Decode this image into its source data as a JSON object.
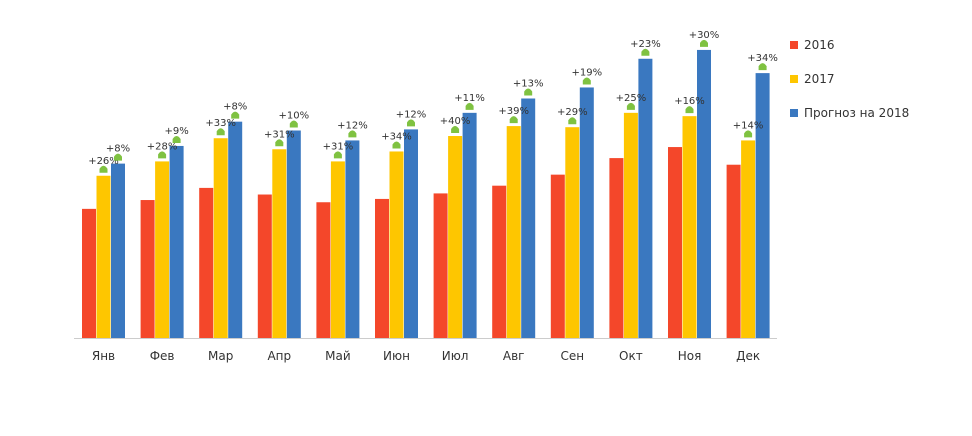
{
  "chart_data": {
    "type": "bar",
    "categories": [
      "Янв",
      "Фев",
      "Мар",
      "Апр",
      "Май",
      "Июн",
      "Июл",
      "Авг",
      "Сен",
      "Окт",
      "Ноя",
      "Дек"
    ],
    "series": [
      {
        "name": "2016",
        "color": "#f4472a",
        "values": [
          117,
          125,
          136,
          130,
          123,
          126,
          131,
          138,
          148,
          163,
          173,
          157
        ]
      },
      {
        "name": "2017",
        "color": "#fec600",
        "values": [
          147,
          160,
          181,
          171,
          160,
          169,
          183,
          192,
          191,
          204,
          201,
          179
        ]
      },
      {
        "name": "Прогноз на 2018",
        "color": "#3a78c0",
        "values": [
          158,
          174,
          196,
          188,
          179,
          189,
          204,
          217,
          227,
          253,
          261,
          240
        ]
      }
    ],
    "growth_2017": [
      "+26%",
      "+28%",
      "+33%",
      "+31%",
      "+31%",
      "+34%",
      "+40%",
      "+39%",
      "+29%",
      "+25%",
      "+16%",
      "+14%"
    ],
    "growth_2018": [
      "+8%",
      "+9%",
      "+8%",
      "+10%",
      "+12%",
      "+12%",
      "+11%",
      "+13%",
      "+19%",
      "+23%",
      "+30%",
      "+34%"
    ],
    "marker_color": "#7fc241",
    "ylim": [
      0,
      270
    ],
    "grid": false,
    "legend_position": "right"
  }
}
